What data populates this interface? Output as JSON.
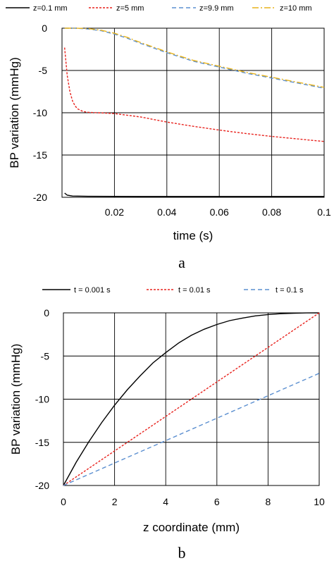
{
  "chart_data": [
    {
      "type": "line",
      "panel_label": "a",
      "xlabel": "time (s)",
      "ylabel": "BP variation (mmHg)",
      "xlim": [
        0,
        0.1
      ],
      "ylim": [
        -20,
        0
      ],
      "xticks": [
        0,
        0.02,
        0.04,
        0.06,
        0.08,
        0.1
      ],
      "xtick_labels": [
        "",
        "0.02",
        "0.04",
        "0.06",
        "0.08",
        "0.1"
      ],
      "yticks": [
        0,
        -5,
        -10,
        -15,
        -20
      ],
      "ytick_labels": [
        "0",
        "-5",
        "-10",
        "-15",
        "-20"
      ],
      "grid": true,
      "legend_position": "top",
      "series": [
        {
          "name": "z=0.1 mm",
          "color": "#000000",
          "dash": "solid",
          "x": [
            0.001,
            0.002,
            0.004,
            0.01,
            0.03,
            0.06,
            0.1
          ],
          "y": [
            -19.5,
            -19.75,
            -19.85,
            -19.88,
            -19.9,
            -19.9,
            -19.9
          ]
        },
        {
          "name": "z=5 mm",
          "color": "#e8231e",
          "dash": "dotted",
          "x": [
            0.001,
            0.002,
            0.003,
            0.004,
            0.005,
            0.006,
            0.008,
            0.01,
            0.015,
            0.02,
            0.03,
            0.04,
            0.05,
            0.06,
            0.07,
            0.08,
            0.09,
            0.1
          ],
          "y": [
            -2.3,
            -5.6,
            -7.5,
            -8.6,
            -9.2,
            -9.55,
            -9.85,
            -9.95,
            -10.02,
            -10.1,
            -10.5,
            -11.1,
            -11.6,
            -12.05,
            -12.45,
            -12.8,
            -13.1,
            -13.4
          ]
        },
        {
          "name": "z=9.9 mm",
          "color": "#5b8fd0",
          "dash": "dashed",
          "x": [
            0.001,
            0.005,
            0.01,
            0.015,
            0.02,
            0.025,
            0.03,
            0.04,
            0.05,
            0.06,
            0.07,
            0.08,
            0.09,
            0.1
          ],
          "y": [
            0,
            0,
            -0.1,
            -0.3,
            -0.7,
            -1.2,
            -1.8,
            -2.9,
            -3.9,
            -4.6,
            -5.3,
            -5.9,
            -6.5,
            -7.1
          ]
        },
        {
          "name": "z=10 mm",
          "color": "#e8b31b",
          "dash": "dashdot",
          "x": [
            0.001,
            0.005,
            0.01,
            0.015,
            0.02,
            0.025,
            0.03,
            0.04,
            0.05,
            0.06,
            0.07,
            0.08,
            0.09,
            0.1
          ],
          "y": [
            0,
            0,
            -0.05,
            -0.25,
            -0.6,
            -1.1,
            -1.7,
            -2.8,
            -3.8,
            -4.5,
            -5.2,
            -5.8,
            -6.4,
            -7.0
          ]
        }
      ]
    },
    {
      "type": "line",
      "panel_label": "b",
      "xlabel": "z coordinate (mm)",
      "ylabel": "BP variation (mmHg)",
      "xlim": [
        0,
        10
      ],
      "ylim": [
        -20,
        0
      ],
      "xticks": [
        0,
        2,
        4,
        6,
        8,
        10
      ],
      "xtick_labels": [
        "0",
        "2",
        "4",
        "6",
        "8",
        "10"
      ],
      "yticks": [
        0,
        -5,
        -10,
        -15,
        -20
      ],
      "ytick_labels": [
        "0",
        "-5",
        "-10",
        "-15",
        "-20"
      ],
      "grid": true,
      "legend_position": "top",
      "series": [
        {
          "name": "t = 0.001 s",
          "color": "#000000",
          "dash": "solid",
          "x": [
            0,
            0.5,
            1,
            1.5,
            2,
            2.5,
            3,
            3.5,
            4,
            4.5,
            5,
            5.5,
            6,
            6.5,
            7,
            7.5,
            8,
            8.5,
            9,
            9.5,
            10
          ],
          "y": [
            -20,
            -17.3,
            -14.9,
            -12.7,
            -10.7,
            -8.9,
            -7.3,
            -5.8,
            -4.6,
            -3.5,
            -2.6,
            -1.9,
            -1.35,
            -0.9,
            -0.6,
            -0.35,
            -0.2,
            -0.1,
            -0.04,
            -0.01,
            0
          ]
        },
        {
          "name": "t = 0.01 s",
          "color": "#e8231e",
          "dash": "dotted",
          "x": [
            0,
            2,
            4,
            6,
            8,
            10
          ],
          "y": [
            -20,
            -16,
            -12,
            -8,
            -4,
            0
          ]
        },
        {
          "name": "t = 0.1 s",
          "color": "#5b8fd0",
          "dash": "dashed",
          "x": [
            0,
            2,
            4,
            6,
            8,
            10
          ],
          "y": [
            -20,
            -17.4,
            -14.8,
            -12.2,
            -9.6,
            -7
          ]
        }
      ]
    }
  ]
}
